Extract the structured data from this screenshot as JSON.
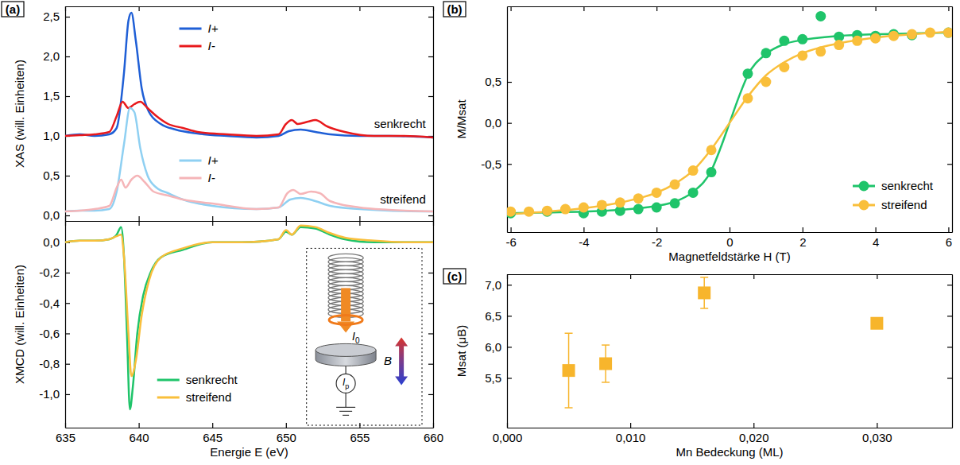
{
  "chart_data": [
    {
      "type": "line",
      "panel": "(a)",
      "ylabel": "XAS (will. Einheiten)",
      "xlim": [
        635,
        660
      ],
      "ylim": [
        -0.07,
        2.63
      ],
      "xticks": [
        635,
        640,
        645,
        650,
        655,
        660
      ],
      "yticks": [
        {
          "value": 0,
          "label": "0,0"
        },
        {
          "value": 0.5,
          "label": "0,5"
        },
        {
          "value": 1,
          "label": "1,0"
        },
        {
          "value": 1.5,
          "label": "1,5"
        },
        {
          "value": 2,
          "label": "2,0"
        },
        {
          "value": 2.5,
          "label": "2,5"
        }
      ],
      "tick_labels": "y",
      "legend": "top",
      "series": [
        {
          "name": "I+",
          "color": "#1f5fd6",
          "x": [
            635,
            636,
            637,
            638,
            638.5,
            639,
            639.3,
            639.5,
            639.8,
            640.2,
            640.7,
            641.5,
            642.5,
            644,
            646,
            648,
            649.5,
            650.2,
            651,
            652,
            653,
            655,
            657,
            660
          ],
          "values": [
            1.0,
            1.02,
            1.0,
            1.02,
            1.1,
            1.8,
            2.45,
            2.55,
            2.2,
            1.6,
            1.3,
            1.15,
            1.08,
            1.03,
            1.0,
            0.98,
            1.0,
            1.06,
            1.08,
            1.05,
            1.02,
            1.0,
            1.0,
            0.98
          ]
        },
        {
          "name": "I-",
          "color": "#e8191c",
          "x": [
            635,
            636,
            637,
            638,
            638.5,
            638.9,
            639.3,
            639.7,
            640.1,
            640.6,
            641.2,
            642,
            643,
            644,
            646,
            648,
            649.5,
            650,
            650.4,
            650.8,
            651.5,
            652,
            652.8,
            654,
            656,
            658,
            660
          ],
          "values": [
            1.0,
            1.01,
            1.02,
            1.05,
            1.25,
            1.43,
            1.35,
            1.4,
            1.43,
            1.35,
            1.25,
            1.15,
            1.1,
            1.05,
            1.02,
            1.0,
            1.02,
            1.15,
            1.2,
            1.15,
            1.18,
            1.2,
            1.12,
            1.05,
            1.0,
            1.0,
            0.98
          ]
        },
        {
          "name": "I+",
          "color": "#8fd0f2",
          "x": [
            635,
            636,
            637,
            638,
            638.5,
            639,
            639.4,
            639.7,
            640.1,
            640.6,
            641.2,
            642,
            643,
            645,
            648,
            649.5,
            650.3,
            651,
            652,
            653,
            655,
            657,
            660
          ],
          "values": [
            0.05,
            0.06,
            0.06,
            0.08,
            0.3,
            0.9,
            1.35,
            1.3,
            0.85,
            0.5,
            0.35,
            0.28,
            0.2,
            0.12,
            0.08,
            0.1,
            0.2,
            0.22,
            0.18,
            0.12,
            0.08,
            0.06,
            0.05
          ]
        },
        {
          "name": "I-",
          "color": "#f5b5b8",
          "x": [
            635,
            636,
            637,
            638,
            638.5,
            638.8,
            639.1,
            639.5,
            639.9,
            640.4,
            641,
            642,
            643,
            645,
            648,
            649.5,
            650.1,
            650.5,
            651,
            651.7,
            652.3,
            653,
            655,
            657,
            660
          ],
          "values": [
            0.05,
            0.06,
            0.08,
            0.12,
            0.35,
            0.45,
            0.35,
            0.45,
            0.5,
            0.42,
            0.3,
            0.25,
            0.2,
            0.15,
            0.08,
            0.1,
            0.28,
            0.32,
            0.27,
            0.3,
            0.28,
            0.18,
            0.1,
            0.07,
            0.05
          ]
        }
      ],
      "annotations": [
        {
          "text": "senkrecht",
          "x": 659.5,
          "y": 1.1
        },
        {
          "text": "streifend",
          "x": 659.5,
          "y": 0.15
        }
      ]
    },
    {
      "type": "line",
      "xlabel": "Energie E (eV)",
      "ylabel": "XMCD (will. Einheiten)",
      "xlim": [
        635,
        660
      ],
      "ylim": [
        -1.22,
        0.14
      ],
      "xticks": [
        635,
        640,
        645,
        650,
        655,
        660
      ],
      "yticks": [
        {
          "value": -1,
          "label": "-1,0"
        },
        {
          "value": -0.8,
          "label": "-0,8"
        },
        {
          "value": -0.6,
          "label": "-0,6"
        },
        {
          "value": -0.4,
          "label": "-0,4"
        },
        {
          "value": -0.2,
          "label": "-0,2"
        },
        {
          "value": 0,
          "label": "0,0"
        }
      ],
      "legend": "bottom-left",
      "series": [
        {
          "name": "senkrecht",
          "color": "#1fc46a",
          "x": [
            635,
            636,
            637,
            638,
            638.5,
            638.8,
            639.0,
            639.2,
            639.4,
            639.6,
            639.9,
            640.3,
            640.8,
            641.5,
            643,
            645,
            647,
            649.5,
            650,
            650.4,
            651,
            652,
            653,
            654,
            656,
            658,
            660
          ],
          "values": [
            0,
            0.01,
            0.01,
            0.02,
            0.05,
            0.1,
            -0.1,
            -0.6,
            -1.1,
            -0.95,
            -0.6,
            -0.35,
            -0.2,
            -0.1,
            -0.05,
            0,
            0,
            0.02,
            0.07,
            0.05,
            0.1,
            0.09,
            0.05,
            0.02,
            0,
            0,
            0
          ]
        },
        {
          "name": "streifend",
          "color": "#f9bf3b",
          "x": [
            635,
            636,
            637,
            638,
            638.5,
            638.8,
            639.0,
            639.3,
            639.5,
            639.8,
            640.2,
            640.7,
            641.5,
            643,
            645,
            647,
            649.5,
            650,
            650.4,
            651,
            652,
            653,
            654,
            656,
            658,
            660
          ],
          "values": [
            0,
            0.01,
            0.01,
            0.02,
            0.04,
            0.05,
            -0.1,
            -0.6,
            -0.88,
            -0.78,
            -0.48,
            -0.25,
            -0.1,
            -0.04,
            0,
            0,
            0.02,
            0.08,
            0.05,
            0.11,
            0.1,
            0.06,
            0.03,
            0.01,
            0,
            0
          ]
        }
      ],
      "inset_labels": [
        "I0",
        "Ip",
        "B"
      ]
    },
    {
      "type": "scatter",
      "panel": "(b)",
      "xlabel": "Magnetfeldstärke H (T)",
      "ylabel": "M/Msat",
      "xlim": [
        -6.1,
        6.1
      ],
      "ylim": [
        -1.33,
        1.42
      ],
      "xticks": [
        -6,
        -4,
        -2,
        0,
        2,
        4,
        6
      ],
      "yticks": [
        {
          "value": -0.5,
          "label": "-0,5"
        },
        {
          "value": 0,
          "label": "0,0"
        },
        {
          "value": 0.5,
          "label": "0,5"
        }
      ],
      "legend": "bottom-right",
      "series": [
        {
          "name": "senkrecht",
          "color": "#1fc46a",
          "marker": "circle",
          "x": [
            -6,
            -5,
            -4,
            -3.5,
            -3,
            -2.5,
            -2,
            -1.5,
            -1,
            -0.5,
            0.5,
            1,
            1.5,
            2,
            2.5,
            3,
            3.5,
            4,
            4.5,
            5,
            6
          ],
          "values": [
            -1.1,
            -1.08,
            -1.1,
            -1.08,
            -1.07,
            -1.05,
            -1.03,
            -0.98,
            -0.85,
            -0.6,
            0.6,
            0.85,
            1.0,
            1.02,
            1.3,
            1.05,
            1.07,
            1.06,
            1.08,
            1.07,
            1.1
          ]
        },
        {
          "name": "streifend",
          "color": "#f9bf3b",
          "marker": "circle",
          "x": [
            -6,
            -5.5,
            -5,
            -4.5,
            -4,
            -3.5,
            -3,
            -2.5,
            -2,
            -1.5,
            -1,
            -0.5,
            0.5,
            1,
            1.5,
            2,
            2.5,
            3,
            3.5,
            4,
            4.5,
            5,
            5.5,
            6
          ],
          "values": [
            -1.08,
            -1.08,
            -1.07,
            -1.05,
            -1.03,
            -1.0,
            -0.97,
            -0.92,
            -0.85,
            -0.75,
            -0.58,
            -0.33,
            0.3,
            0.5,
            0.68,
            0.82,
            0.87,
            0.95,
            1.0,
            1.03,
            1.06,
            1.08,
            1.1,
            1.1
          ]
        },
        {
          "type": "line",
          "line_style": "solid",
          "color": "#1fc46a",
          "x": [
            -6,
            -5,
            -4,
            -3,
            -2.5,
            -2,
            -1.5,
            -1,
            -0.5,
            -0.25,
            0,
            0.25,
            0.5,
            1,
            1.5,
            2,
            2.5,
            3,
            4,
            5,
            6
          ],
          "values": [
            -1.1,
            -1.09,
            -1.08,
            -1.06,
            -1.04,
            -1.01,
            -0.96,
            -0.84,
            -0.58,
            -0.31,
            0,
            0.31,
            0.58,
            0.84,
            0.96,
            1.01,
            1.04,
            1.06,
            1.08,
            1.09,
            1.1
          ]
        },
        {
          "type": "line",
          "line_style": "solid",
          "color": "#f9bf3b",
          "x": [
            -6,
            -5,
            -4,
            -3,
            -2.5,
            -2,
            -1.5,
            -1,
            -0.5,
            0,
            0.5,
            1,
            1.5,
            2,
            2.5,
            3,
            4,
            5,
            6
          ],
          "values": [
            -1.11,
            -1.08,
            -1.04,
            -0.97,
            -0.92,
            -0.85,
            -0.74,
            -0.58,
            -0.32,
            0,
            0.32,
            0.58,
            0.74,
            0.85,
            0.92,
            0.97,
            1.04,
            1.08,
            1.11
          ]
        }
      ]
    },
    {
      "type": "scatter",
      "panel": "(c)",
      "xlabel": "Mn Bedeckung (ML)",
      "ylabel": "Msat (μB)",
      "xlim": [
        0,
        0.0361
      ],
      "ylim": [
        4.7,
        7.17
      ],
      "xticks": [
        {
          "value": 0,
          "label": "0,000"
        },
        {
          "value": 0.01,
          "label": "0,010"
        },
        {
          "value": 0.02,
          "label": "0,020"
        },
        {
          "value": 0.03,
          "label": "0,030"
        }
      ],
      "yticks": [
        {
          "value": 5.5,
          "label": "5,5"
        },
        {
          "value": 6,
          "label": "6,0"
        },
        {
          "value": 6.5,
          "label": "6,5"
        },
        {
          "value": 7,
          "label": "7,0"
        }
      ],
      "series": [
        {
          "color": "#f7b52c",
          "marker": "square",
          "x": [
            0.005,
            0.008,
            0.016,
            0.03
          ],
          "values": [
            5.62,
            5.73,
            6.87,
            6.38
          ],
          "errors": [
            0.6,
            0.3,
            0.25,
            0.05
          ]
        }
      ]
    }
  ]
}
